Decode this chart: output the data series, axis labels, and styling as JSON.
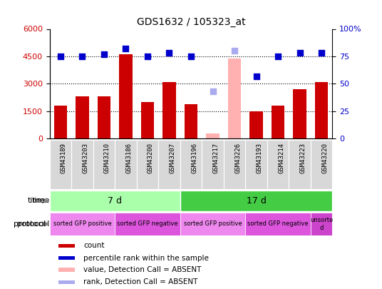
{
  "title": "GDS1632 / 105323_at",
  "samples": [
    "GSM43189",
    "GSM43203",
    "GSM43210",
    "GSM43186",
    "GSM43200",
    "GSM43207",
    "GSM43196",
    "GSM43217",
    "GSM43226",
    "GSM43193",
    "GSM43214",
    "GSM43223",
    "GSM43220"
  ],
  "counts": [
    1800,
    2300,
    2300,
    4600,
    2000,
    3100,
    1900,
    300,
    4400,
    1500,
    1800,
    2700,
    3100
  ],
  "absent_value_indices": [
    7,
    8
  ],
  "percentile_ranks": [
    75,
    75,
    77,
    82,
    75,
    78,
    75,
    null,
    null,
    57,
    75,
    78,
    78
  ],
  "absent_rank": [
    null,
    null,
    null,
    null,
    null,
    null,
    null,
    43,
    80,
    null,
    null,
    null,
    null
  ],
  "ylim_left": [
    0,
    6000
  ],
  "ylim_right": [
    0,
    100
  ],
  "yticks_left": [
    0,
    1500,
    3000,
    4500,
    6000
  ],
  "yticks_right": [
    0,
    25,
    50,
    75,
    100
  ],
  "bar_color": "#cc0000",
  "absent_bar_color": "#ffb0b0",
  "dot_color": "#0000cc",
  "absent_dot_color": "#aaaaee",
  "time_7d_color": "#aaffaa",
  "time_17d_color": "#44cc44",
  "protocol_groups": [
    {
      "label": "sorted GFP positive",
      "start": 0,
      "end": 3,
      "color": "#ee88ee"
    },
    {
      "label": "sorted GFP negative",
      "start": 3,
      "end": 6,
      "color": "#dd55dd"
    },
    {
      "label": "sorted GFP positive",
      "start": 6,
      "end": 9,
      "color": "#ee88ee"
    },
    {
      "label": "sorted GFP negative",
      "start": 9,
      "end": 12,
      "color": "#dd55dd"
    },
    {
      "label": "unsorte\nd",
      "start": 12,
      "end": 13,
      "color": "#cc44cc"
    }
  ],
  "tick_label_color_left": "#cc0000",
  "tick_label_color_right": "#0000cc",
  "sample_bg_color": "#d8d8d8",
  "legend_items": [
    {
      "color": "#cc0000",
      "label": "count"
    },
    {
      "color": "#0000cc",
      "label": "percentile rank within the sample"
    },
    {
      "color": "#ffb0b0",
      "label": "value, Detection Call = ABSENT"
    },
    {
      "color": "#aaaaee",
      "label": "rank, Detection Call = ABSENT"
    }
  ]
}
